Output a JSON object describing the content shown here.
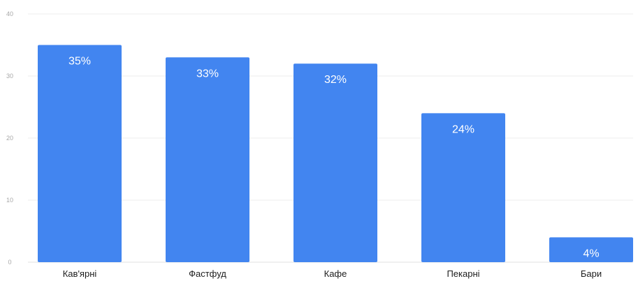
{
  "chart_data": {
    "type": "bar",
    "categories": [
      "Кав'ярні",
      "Фастфуд",
      "Кафе",
      "Пекарні",
      "Бари"
    ],
    "values": [
      35,
      33,
      32,
      24,
      4
    ],
    "data_labels": [
      "35%",
      "33%",
      "32%",
      "24%",
      "4%"
    ],
    "yticks": [
      0,
      10,
      20,
      30,
      40
    ],
    "ylim": [
      0,
      40
    ],
    "grid": true,
    "legend": "none",
    "bar_color": "#4285f0"
  }
}
